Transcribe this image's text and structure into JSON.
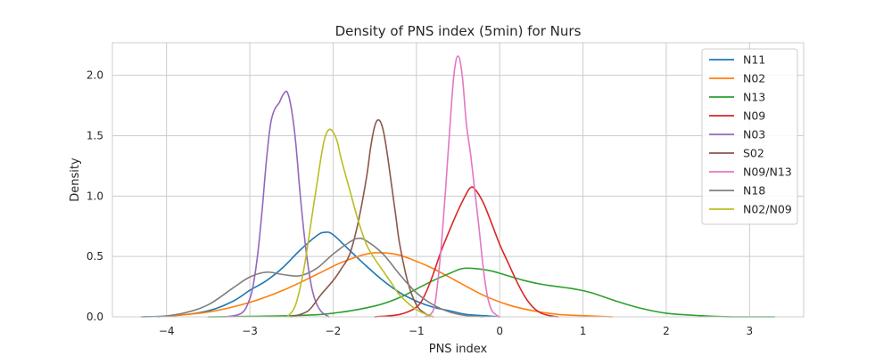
{
  "chart_data": {
    "type": "line",
    "title": "Density of PNS index (5min) for Nurs",
    "xlabel": "PNS index",
    "ylabel": "Density",
    "xlim": [
      -4.65,
      3.65
    ],
    "ylim": [
      0,
      2.27
    ],
    "xticks": [
      -4,
      -3,
      -2,
      -1,
      0,
      1,
      2,
      3
    ],
    "xtick_labels": [
      "−4",
      "−3",
      "−2",
      "−1",
      "0",
      "1",
      "2",
      "3"
    ],
    "yticks": [
      0.0,
      0.5,
      1.0,
      1.5,
      2.0
    ],
    "ytick_labels": [
      "0.0",
      "0.5",
      "1.0",
      "1.5",
      "2.0"
    ],
    "grid": true,
    "legend_position": "top-right",
    "series": [
      {
        "name": "N11",
        "color": "#1f77b4",
        "x": [
          -4.3,
          -3.9,
          -3.5,
          -3.2,
          -3.0,
          -2.8,
          -2.6,
          -2.4,
          -2.2,
          -2.1,
          -2.0,
          -1.8,
          -1.6,
          -1.4,
          -1.2,
          -1.0,
          -0.8,
          -0.6,
          -0.4,
          -0.2,
          0.0
        ],
        "y": [
          0.0,
          0.01,
          0.05,
          0.13,
          0.22,
          0.3,
          0.41,
          0.55,
          0.67,
          0.7,
          0.68,
          0.55,
          0.42,
          0.3,
          0.2,
          0.13,
          0.08,
          0.05,
          0.02,
          0.01,
          0.0
        ]
      },
      {
        "name": "N02",
        "color": "#ff7f0e",
        "x": [
          -4.1,
          -3.5,
          -3.0,
          -2.6,
          -2.2,
          -1.9,
          -1.6,
          -1.4,
          -1.2,
          -1.0,
          -0.8,
          -0.5,
          -0.2,
          0.1,
          0.4,
          0.7,
          1.0,
          1.35
        ],
        "y": [
          0.0,
          0.04,
          0.12,
          0.22,
          0.35,
          0.45,
          0.52,
          0.53,
          0.51,
          0.46,
          0.4,
          0.29,
          0.18,
          0.1,
          0.05,
          0.02,
          0.01,
          0.0
        ]
      },
      {
        "name": "N13",
        "color": "#2ca02c",
        "x": [
          -3.5,
          -2.5,
          -2.0,
          -1.5,
          -1.2,
          -1.0,
          -0.8,
          -0.6,
          -0.45,
          -0.3,
          -0.1,
          0.1,
          0.3,
          0.5,
          0.7,
          0.9,
          1.1,
          1.4,
          1.7,
          2.0,
          2.4,
          2.8,
          3.3
        ],
        "y": [
          0.0,
          0.01,
          0.03,
          0.09,
          0.16,
          0.23,
          0.3,
          0.36,
          0.4,
          0.4,
          0.38,
          0.34,
          0.3,
          0.27,
          0.25,
          0.23,
          0.2,
          0.13,
          0.07,
          0.03,
          0.01,
          0.0,
          0.0
        ]
      },
      {
        "name": "N09",
        "color": "#d62728",
        "x": [
          -1.5,
          -1.2,
          -1.0,
          -0.9,
          -0.8,
          -0.7,
          -0.6,
          -0.5,
          -0.4,
          -0.35,
          -0.3,
          -0.2,
          -0.1,
          0.0,
          0.1,
          0.2,
          0.3,
          0.4,
          0.5,
          0.6,
          0.7
        ],
        "y": [
          0.0,
          0.02,
          0.08,
          0.18,
          0.35,
          0.55,
          0.72,
          0.88,
          1.02,
          1.07,
          1.06,
          0.95,
          0.78,
          0.6,
          0.45,
          0.3,
          0.17,
          0.08,
          0.03,
          0.01,
          0.0
        ]
      },
      {
        "name": "N03",
        "color": "#9467bd",
        "x": [
          -3.3,
          -3.1,
          -3.0,
          -2.95,
          -2.9,
          -2.85,
          -2.8,
          -2.75,
          -2.7,
          -2.65,
          -2.6,
          -2.55,
          -2.5,
          -2.45,
          -2.4,
          -2.35,
          -2.3,
          -2.25,
          -2.2,
          -2.15,
          -2.1,
          -2.05
        ],
        "y": [
          0.0,
          0.03,
          0.15,
          0.3,
          0.55,
          0.9,
          1.3,
          1.6,
          1.72,
          1.77,
          1.84,
          1.86,
          1.72,
          1.45,
          1.05,
          0.7,
          0.42,
          0.22,
          0.11,
          0.05,
          0.02,
          0.0
        ]
      },
      {
        "name": "S02",
        "color": "#8c564b",
        "x": [
          -2.5,
          -2.3,
          -2.15,
          -2.0,
          -1.9,
          -1.8,
          -1.7,
          -1.6,
          -1.55,
          -1.5,
          -1.45,
          -1.4,
          -1.35,
          -1.3,
          -1.25,
          -1.2,
          -1.1,
          -1.0,
          -0.9,
          -0.8
        ],
        "y": [
          0.0,
          0.05,
          0.18,
          0.3,
          0.4,
          0.52,
          0.78,
          1.15,
          1.4,
          1.58,
          1.63,
          1.55,
          1.35,
          1.1,
          0.85,
          0.6,
          0.28,
          0.1,
          0.03,
          0.0
        ]
      },
      {
        "name": "N09/N13",
        "color": "#e377c2",
        "x": [
          -0.9,
          -0.8,
          -0.75,
          -0.7,
          -0.65,
          -0.6,
          -0.55,
          -0.5,
          -0.45,
          -0.4,
          -0.35,
          -0.3,
          -0.25,
          -0.2,
          -0.15,
          -0.1,
          -0.05,
          0.0
        ],
        "y": [
          0.0,
          0.05,
          0.25,
          0.6,
          1.05,
          1.55,
          2.0,
          2.16,
          2.0,
          1.6,
          1.35,
          1.05,
          0.75,
          0.42,
          0.18,
          0.06,
          0.02,
          0.0
        ]
      },
      {
        "name": "N18",
        "color": "#7f7f7f",
        "x": [
          -4.1,
          -3.8,
          -3.5,
          -3.2,
          -3.0,
          -2.8,
          -2.6,
          -2.4,
          -2.2,
          -2.0,
          -1.8,
          -1.7,
          -1.6,
          -1.4,
          -1.2,
          -1.0,
          -0.8,
          -0.6,
          -0.4,
          -0.2
        ],
        "y": [
          0.0,
          0.03,
          0.1,
          0.24,
          0.33,
          0.37,
          0.35,
          0.34,
          0.4,
          0.52,
          0.62,
          0.65,
          0.63,
          0.52,
          0.35,
          0.2,
          0.1,
          0.04,
          0.01,
          0.0
        ]
      },
      {
        "name": "N02/N09",
        "color": "#bcbd22",
        "x": [
          -2.55,
          -2.45,
          -2.35,
          -2.25,
          -2.15,
          -2.1,
          -2.05,
          -2.0,
          -1.95,
          -1.9,
          -1.8,
          -1.7,
          -1.6,
          -1.5,
          -1.4,
          -1.3,
          -1.2,
          -1.0,
          -0.8
        ],
        "y": [
          0.0,
          0.1,
          0.4,
          0.85,
          1.3,
          1.48,
          1.55,
          1.53,
          1.45,
          1.3,
          1.05,
          0.8,
          0.6,
          0.48,
          0.38,
          0.28,
          0.18,
          0.06,
          0.0
        ]
      }
    ]
  }
}
